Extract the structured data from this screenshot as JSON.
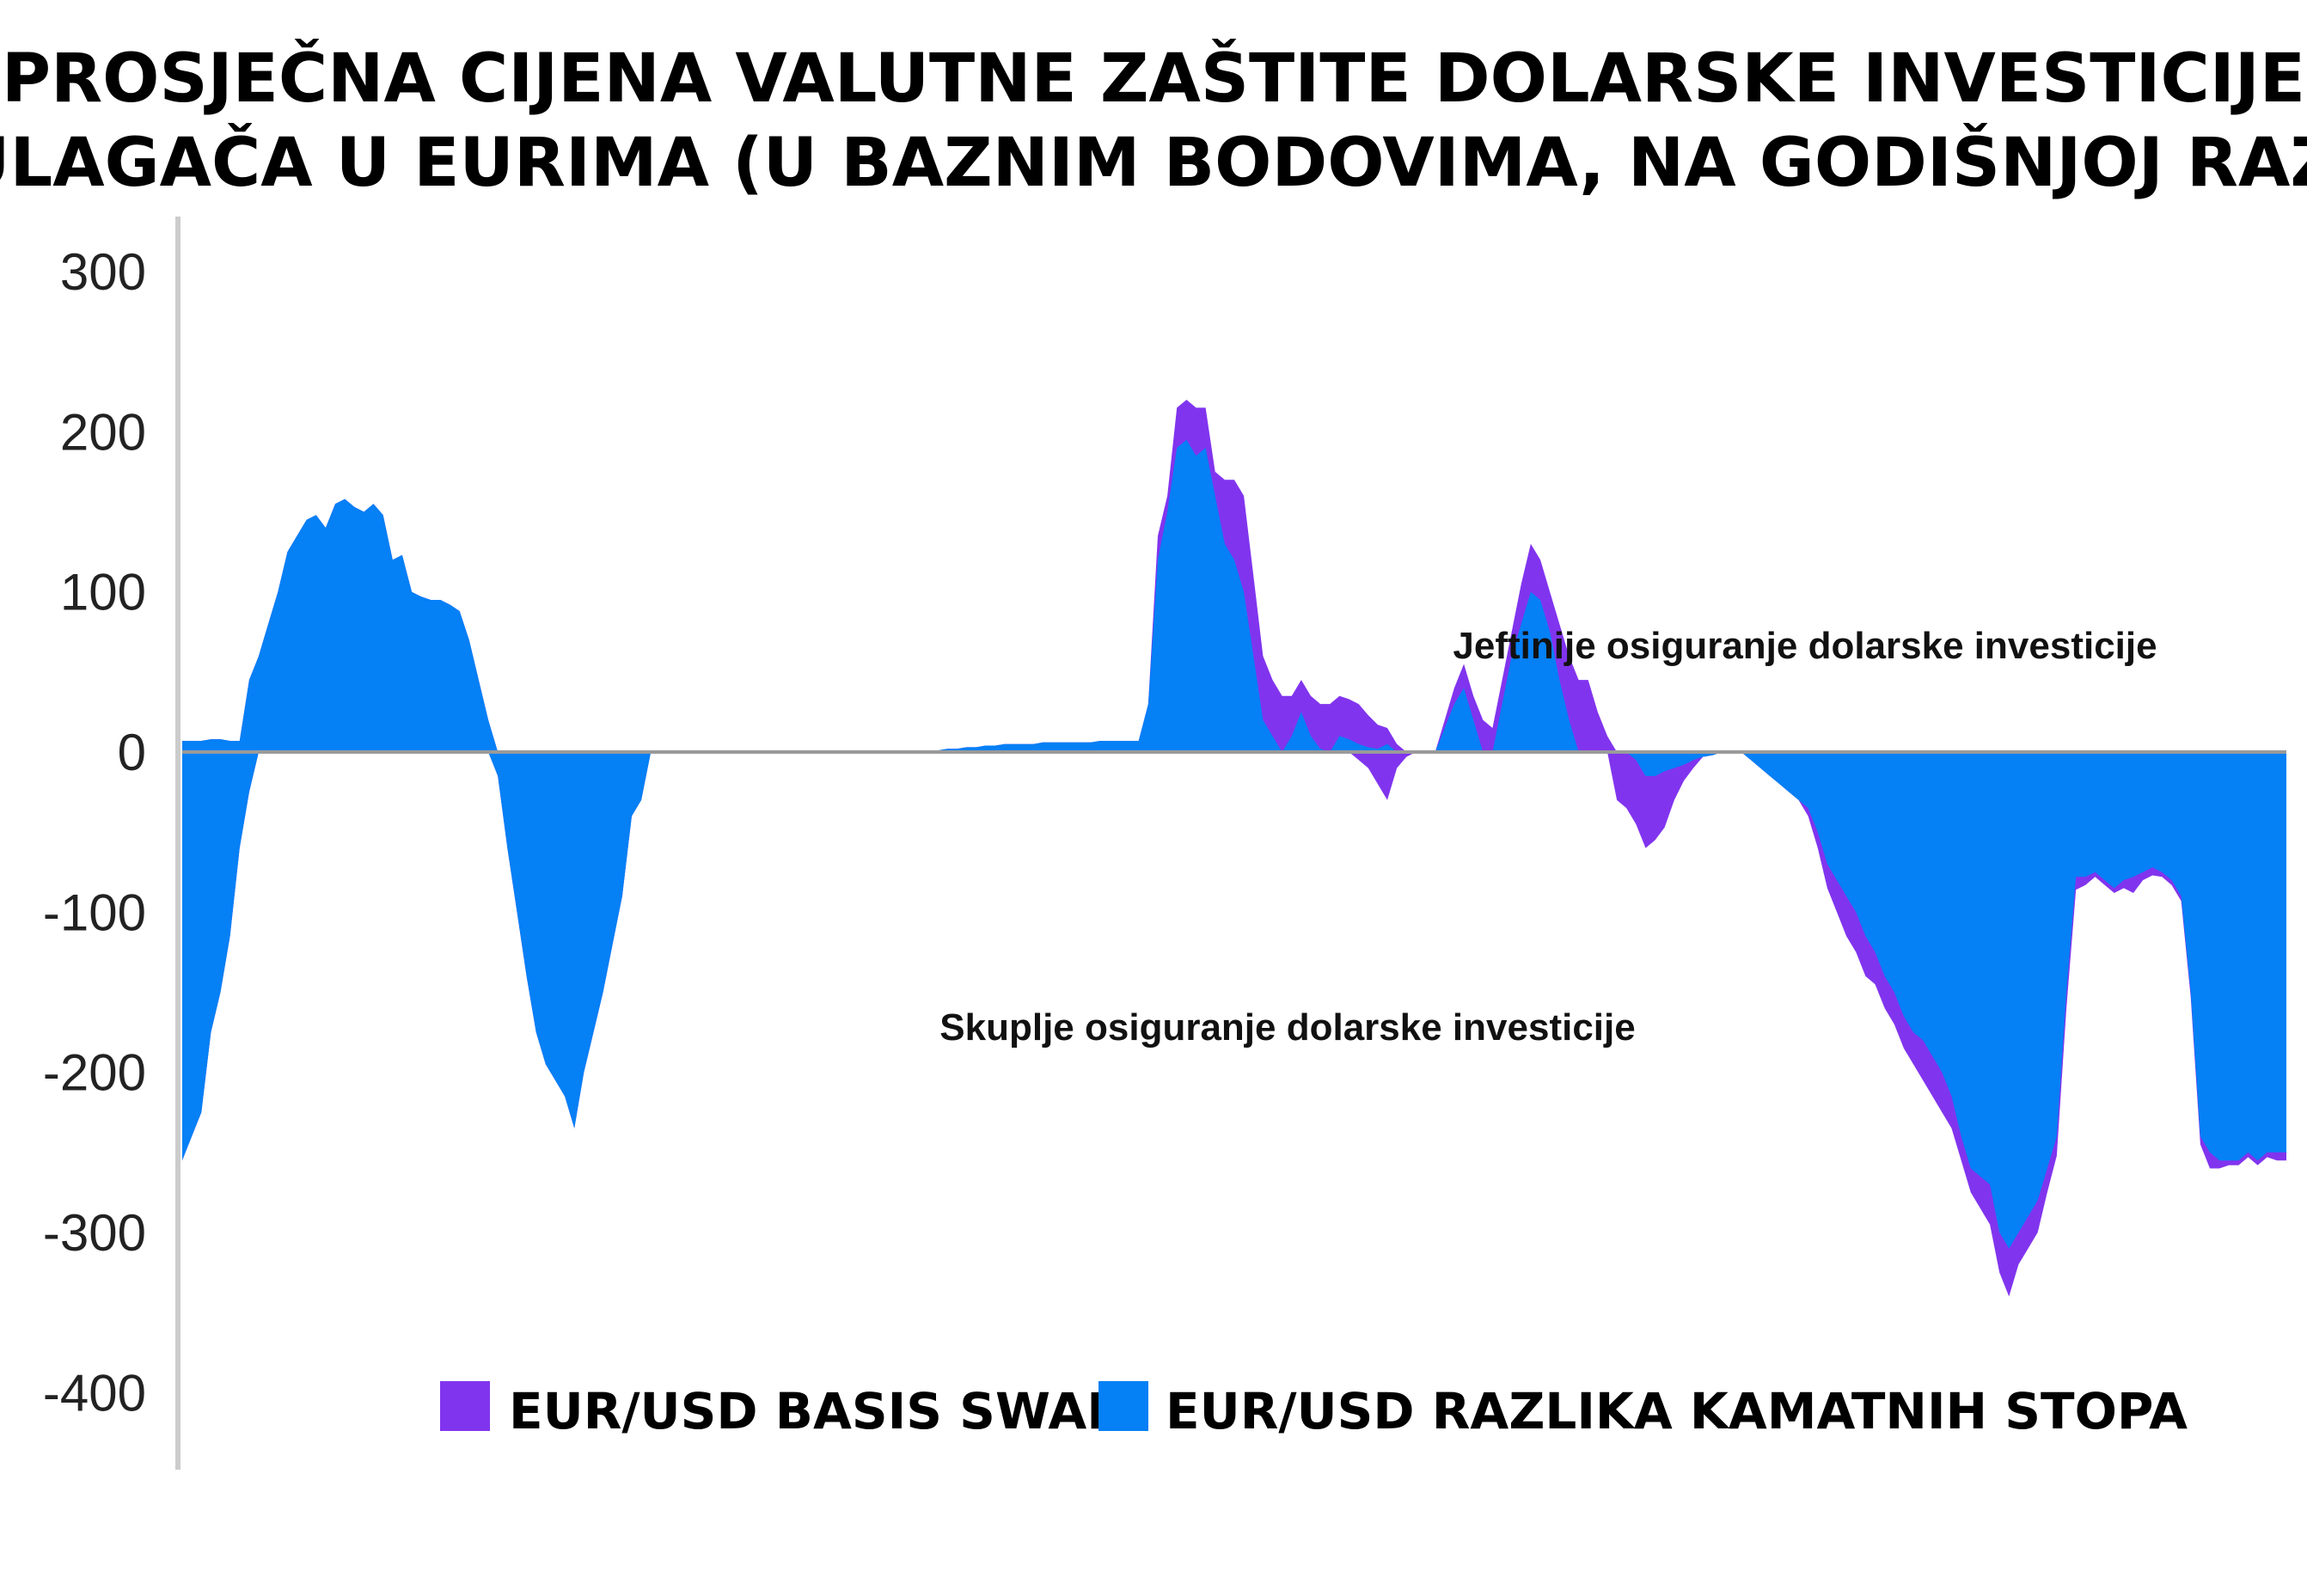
{
  "chart_data": {
    "type": "area",
    "title_lines": [
      "PROSJEČNA CIJENA VALUTNE ZAŠTITE DOLARSKE INVESTICIJE",
      "ZA ULAGAČA U EURIMA (U BAZNIM BODOVIMA, NA GODIŠNJOJ RAZINI)"
    ],
    "ylim": [
      -400,
      300
    ],
    "yticks": [
      300,
      200,
      100,
      0,
      -100,
      -200,
      -300,
      -400
    ],
    "ytick_labels": [
      "300",
      "200",
      "100",
      "0",
      "-100",
      "-200",
      "-300",
      "-400"
    ],
    "annotations": {
      "positive": "Jeftinije osiguranje dolarske investicije",
      "negative": "Skuplje osiguranje dolarske investicije"
    },
    "legend": [
      {
        "label": "EUR/USD BASIS SWAP",
        "color": "#8134EE"
      },
      {
        "label": "EUR/USD RAZLIKA KAMATNIH STOPA",
        "color": "#0580F5"
      }
    ],
    "x": [
      0,
      1,
      2,
      3,
      4,
      5,
      6,
      7,
      8,
      9,
      10,
      11,
      12,
      13,
      14,
      15,
      16,
      17,
      18,
      19,
      20,
      21,
      22,
      23,
      24,
      25,
      26,
      27,
      28,
      29,
      30,
      31,
      32,
      33,
      34,
      35,
      36,
      37,
      38,
      39,
      40,
      41,
      42,
      43,
      44,
      45,
      46,
      47,
      48,
      49,
      50,
      51,
      52,
      53,
      54,
      55,
      56,
      57,
      58,
      59,
      60,
      61,
      62,
      63,
      64,
      65,
      66,
      67,
      68,
      69,
      70,
      71,
      72,
      73,
      74,
      75,
      76,
      77,
      78,
      79,
      80,
      81,
      82,
      83,
      84,
      85,
      86,
      87,
      88,
      89,
      90,
      91,
      92,
      93,
      94,
      95,
      96,
      97,
      98,
      99,
      100,
      101,
      102,
      103,
      104,
      105,
      106,
      107,
      108,
      109,
      110,
      111,
      112,
      113,
      114,
      115,
      116,
      117,
      118,
      119,
      120,
      121,
      122,
      123,
      124,
      125,
      126,
      127,
      128,
      129,
      130,
      131,
      132,
      133,
      134,
      135,
      136,
      137,
      138,
      139,
      140,
      141,
      142,
      143,
      144,
      145,
      146,
      147,
      148,
      149,
      150,
      151,
      152,
      153,
      154,
      155,
      156,
      157,
      158,
      159,
      160,
      161,
      162,
      163,
      164,
      165,
      166,
      167,
      168,
      169,
      170,
      171,
      172,
      173,
      174,
      175,
      176,
      177,
      178,
      179,
      180,
      181,
      182,
      183,
      184,
      185,
      186,
      187,
      188,
      189,
      190,
      191,
      192,
      193,
      194,
      195,
      196,
      197,
      198,
      199,
      200,
      201,
      202,
      203,
      204,
      205,
      206,
      207,
      208,
      209,
      210,
      211,
      212,
      213,
      214,
      215,
      216,
      217,
      218,
      219,
      220
    ],
    "series": [
      {
        "name": "EUR/USD RAZLIKA KAMATNIH STOPA",
        "pos": [
          7,
          7,
          7,
          8,
          8,
          7,
          7,
          45,
          60,
          80,
          100,
          125,
          135,
          145,
          148,
          140,
          155,
          158,
          153,
          150,
          155,
          148,
          120,
          123,
          100,
          97,
          95,
          95,
          92,
          88,
          70,
          45,
          20,
          0,
          0,
          0,
          0,
          0,
          0,
          0,
          0,
          0,
          0,
          0,
          0,
          0,
          0,
          0,
          0,
          0,
          0,
          0,
          0,
          0,
          0,
          0,
          0,
          0,
          0,
          0,
          0,
          0,
          0,
          0,
          0,
          0,
          0,
          0,
          0,
          0,
          0,
          0,
          0,
          0,
          0,
          0,
          0,
          0,
          1,
          1,
          2,
          2,
          3,
          3,
          4,
          4,
          5,
          5,
          5,
          5,
          6,
          6,
          6,
          6,
          6,
          6,
          7,
          7,
          7,
          7,
          7,
          30,
          120,
          150,
          190,
          195,
          185,
          190,
          160,
          130,
          120,
          100,
          60,
          20,
          10,
          0,
          10,
          25,
          10,
          2,
          0,
          10,
          8,
          5,
          3,
          2,
          5,
          0,
          0,
          0,
          0,
          0,
          15,
          30,
          40,
          20,
          0,
          0,
          30,
          60,
          80,
          100,
          95,
          75,
          45,
          20,
          0,
          0,
          0,
          0,
          0,
          0,
          0,
          0,
          0,
          0,
          0,
          0,
          0,
          0,
          0,
          0,
          0,
          0,
          0,
          0,
          0,
          0,
          0,
          0,
          0,
          0,
          0,
          0,
          0,
          0,
          0,
          0,
          0,
          0,
          0,
          0,
          0,
          0,
          0,
          0,
          0,
          0,
          0,
          0,
          0,
          0,
          0,
          0,
          0,
          0,
          0,
          0,
          0,
          0,
          0,
          0,
          0,
          0,
          0,
          0,
          0,
          0,
          0,
          0,
          0,
          0,
          0,
          0,
          0,
          0,
          0,
          0,
          0,
          0,
          0,
          0,
          0,
          0,
          0,
          0,
          0,
          0
        ],
        "neg": [
          -255,
          -240,
          -225,
          -175,
          -150,
          -115,
          -60,
          -25,
          0,
          0,
          0,
          0,
          0,
          0,
          0,
          0,
          0,
          0,
          0,
          0,
          0,
          0,
          0,
          0,
          0,
          0,
          0,
          0,
          0,
          0,
          0,
          0,
          0,
          -15,
          -60,
          -100,
          -140,
          -175,
          -195,
          -205,
          -215,
          -235,
          -200,
          -175,
          -150,
          -120,
          -90,
          -40,
          -30,
          0,
          0,
          0,
          0,
          0,
          0,
          0,
          0,
          0,
          0,
          0,
          0,
          0,
          0,
          0,
          0,
          0,
          0,
          0,
          0,
          0,
          0,
          0,
          0,
          0,
          0,
          0,
          0,
          0,
          0,
          0,
          0,
          0,
          0,
          0,
          0,
          0,
          0,
          0,
          0,
          0,
          0,
          0,
          0,
          0,
          0,
          0,
          0,
          0,
          0,
          0,
          0,
          0,
          0,
          0,
          0,
          0,
          0,
          0,
          0,
          0,
          0,
          0,
          0,
          0,
          0,
          0,
          0,
          0,
          0,
          0,
          0,
          0,
          0,
          0,
          0,
          0,
          0,
          0,
          0,
          0,
          0,
          0,
          0,
          0,
          0,
          0,
          0,
          0,
          0,
          0,
          0,
          0,
          0,
          0,
          0,
          0,
          0,
          0,
          0,
          0,
          0,
          0,
          -5,
          -15,
          -15,
          -12,
          -10,
          -8,
          -5,
          -3,
          -2,
          0,
          0,
          0,
          -5,
          -10,
          -15,
          -20,
          -25,
          -30,
          -35,
          -50,
          -70,
          -80,
          -90,
          -100,
          -115,
          -125,
          -140,
          -150,
          -165,
          -175,
          -180,
          -190,
          -200,
          -215,
          -240,
          -260,
          -265,
          -270,
          -300,
          -310,
          -300,
          -290,
          -280,
          -260,
          -240,
          -150,
          -78,
          -78,
          -75,
          -80,
          -85,
          -80,
          -78,
          -75,
          -72,
          -75,
          -80,
          -90,
          -150,
          -240,
          -250,
          -255,
          -255,
          -255,
          -250,
          -255,
          -250,
          -250,
          -250,
          -250,
          -250
        ]
      },
      {
        "name": "EUR/USD BASIS SWAP",
        "pos": [
          0,
          0,
          0,
          0,
          0,
          0,
          0,
          0,
          0,
          0,
          0,
          0,
          0,
          0,
          0,
          0,
          0,
          0,
          0,
          0,
          0,
          0,
          0,
          0,
          0,
          0,
          0,
          0,
          0,
          0,
          0,
          0,
          0,
          0,
          0,
          0,
          0,
          0,
          0,
          0,
          0,
          0,
          0,
          0,
          0,
          0,
          0,
          0,
          0,
          0,
          0,
          0,
          0,
          0,
          0,
          0,
          0,
          0,
          0,
          0,
          0,
          0,
          0,
          0,
          0,
          0,
          0,
          0,
          0,
          0,
          0,
          0,
          0,
          0,
          0,
          0,
          0,
          0,
          0,
          0,
          0,
          0,
          0,
          0,
          0,
          0,
          0,
          0,
          0,
          0,
          0,
          0,
          0,
          0,
          0,
          0,
          0,
          0,
          0,
          0,
          0,
          0,
          15,
          10,
          25,
          25,
          30,
          25,
          15,
          40,
          50,
          60,
          50,
          40,
          35,
          35,
          25,
          20,
          25,
          28,
          30,
          25,
          25,
          25,
          20,
          15,
          10,
          5,
          0,
          0,
          0,
          0,
          5,
          10,
          15,
          15,
          20,
          15,
          15,
          15,
          25,
          30,
          25,
          25,
          35,
          40,
          45,
          45,
          25,
          10,
          0,
          0,
          0,
          0,
          0,
          0,
          0,
          0,
          0,
          0,
          0,
          0,
          0,
          0,
          0,
          0,
          0,
          0,
          0,
          0,
          0,
          0,
          0,
          0,
          0,
          0,
          0,
          0,
          0,
          0,
          0,
          0,
          0,
          0,
          0,
          0,
          0,
          0,
          0,
          0,
          0,
          0,
          0,
          0,
          0,
          0,
          0,
          0,
          0,
          0,
          0,
          0,
          0,
          0,
          0,
          0,
          0,
          0,
          0,
          0,
          0,
          0,
          0,
          0,
          0,
          0,
          0,
          0,
          0,
          0,
          0,
          0,
          0,
          0
        ],
        "neg": [
          0,
          0,
          0,
          0,
          0,
          0,
          0,
          0,
          0,
          0,
          0,
          0,
          0,
          0,
          0,
          0,
          0,
          0,
          0,
          0,
          0,
          0,
          0,
          0,
          0,
          0,
          0,
          0,
          0,
          0,
          0,
          0,
          0,
          0,
          0,
          0,
          0,
          0,
          0,
          0,
          0,
          0,
          0,
          0,
          0,
          0,
          0,
          0,
          0,
          0,
          0,
          0,
          0,
          0,
          0,
          0,
          0,
          0,
          0,
          0,
          0,
          0,
          0,
          0,
          0,
          0,
          0,
          0,
          0,
          0,
          0,
          0,
          0,
          0,
          0,
          0,
          0,
          0,
          0,
          0,
          0,
          0,
          0,
          0,
          0,
          0,
          0,
          0,
          0,
          0,
          0,
          0,
          0,
          0,
          0,
          0,
          0,
          0,
          0,
          0,
          0,
          0,
          0,
          0,
          0,
          0,
          0,
          0,
          0,
          0,
          0,
          0,
          0,
          0,
          0,
          0,
          0,
          0,
          0,
          0,
          0,
          0,
          0,
          -5,
          -10,
          -20,
          -30,
          -10,
          -3,
          0,
          0,
          0,
          0,
          0,
          0,
          0,
          0,
          0,
          0,
          0,
          0,
          0,
          0,
          0,
          0,
          0,
          0,
          0,
          0,
          0,
          -30,
          -35,
          -40,
          -45,
          -40,
          -35,
          -20,
          -10,
          -5,
          0,
          0,
          0,
          0,
          0,
          0,
          0,
          0,
          0,
          0,
          0,
          -5,
          -10,
          -15,
          -20,
          -25,
          -25,
          -25,
          -20,
          -20,
          -20,
          -20,
          -20,
          -25,
          -25,
          -25,
          -20,
          -15,
          -15,
          -20,
          -25,
          -25,
          -30,
          -20,
          -20,
          -20,
          -15,
          -12,
          -10,
          -8,
          -5,
          -3,
          -3,
          -3,
          -5,
          -10,
          -5,
          -5,
          -3,
          -3,
          -3,
          -3,
          -5,
          -10,
          -5,
          -3,
          -3,
          -3,
          -3,
          -3,
          -5,
          -5,
          -5,
          -5,
          -5,
          -30
        ]
      }
    ]
  }
}
